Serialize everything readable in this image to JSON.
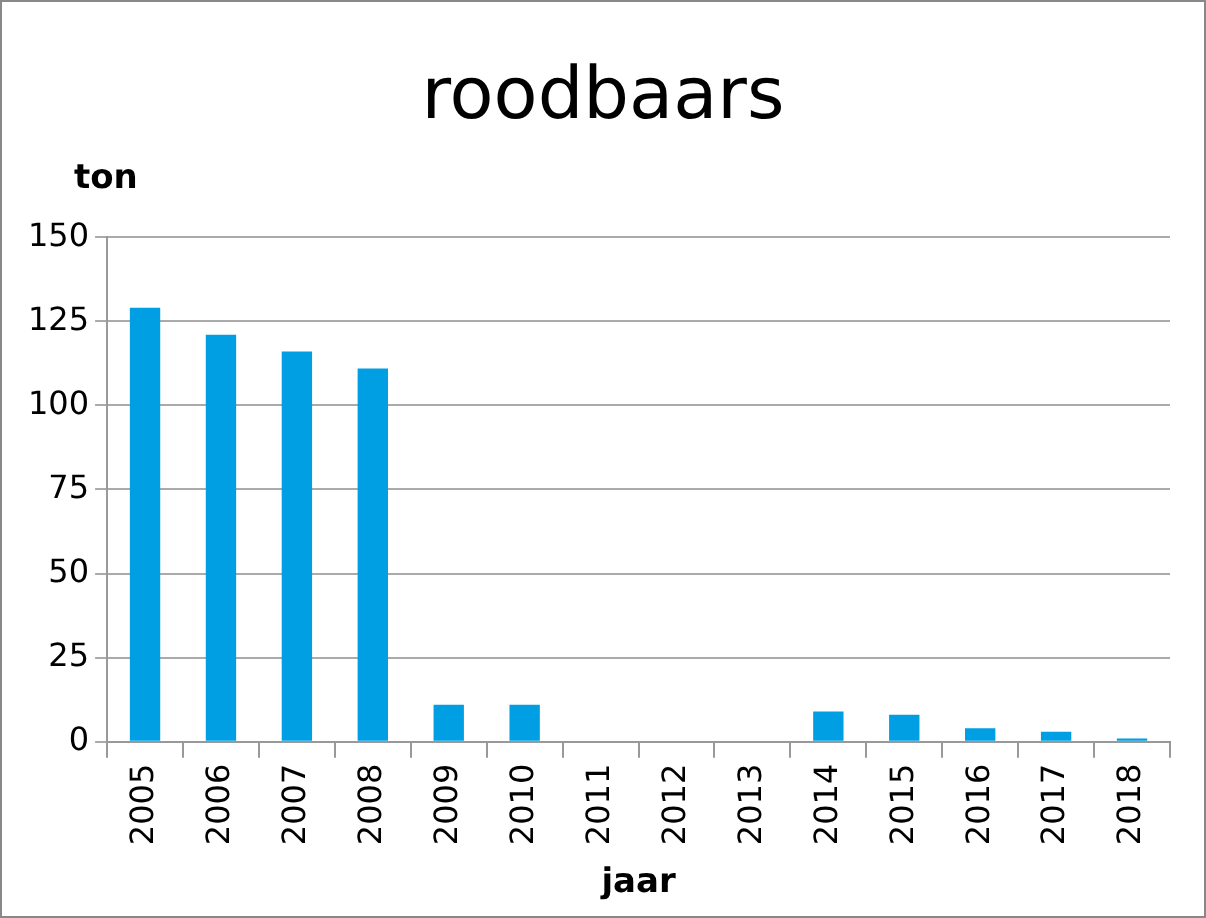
{
  "chart_data": {
    "type": "bar",
    "title": "roodbaars",
    "ylabel": "ton",
    "xlabel": "jaar",
    "categories": [
      "2005",
      "2006",
      "2007",
      "2008",
      "2009",
      "2010",
      "2011",
      "2012",
      "2013",
      "2014",
      "2015",
      "2016",
      "2017",
      "2018"
    ],
    "values": [
      129,
      121,
      116,
      111,
      11,
      11,
      0,
      0,
      0,
      9,
      8,
      4,
      3,
      1
    ],
    "color": "#009fe3",
    "ylim": [
      0,
      150
    ],
    "yticks": [
      0,
      25,
      50,
      75,
      100,
      125,
      150
    ],
    "grid": "y",
    "legend": false
  }
}
